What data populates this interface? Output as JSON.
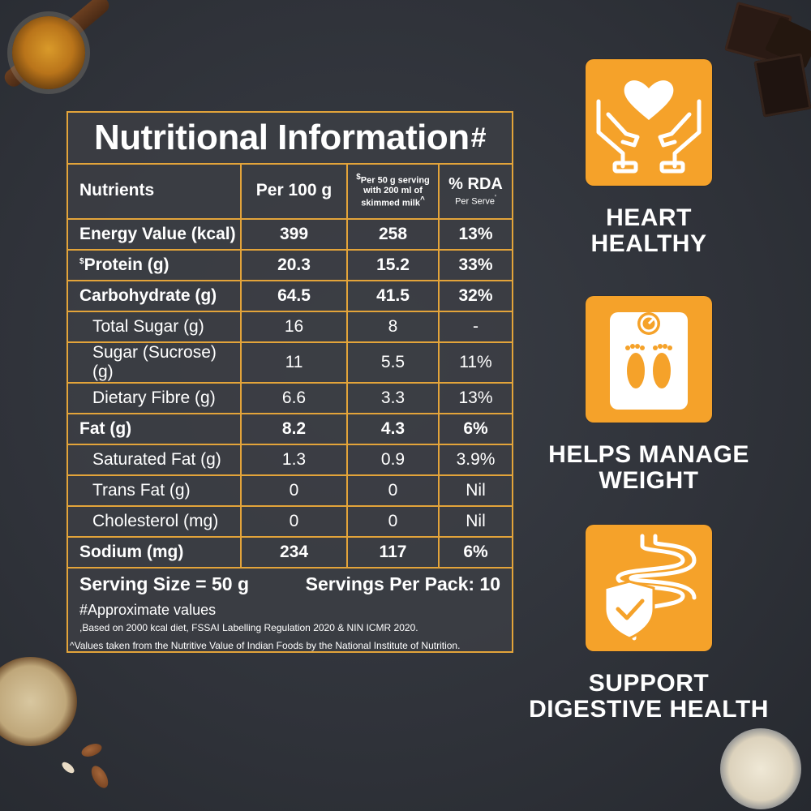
{
  "panel": {
    "title": "Nutritional Information",
    "title_mark": "#",
    "headers": {
      "nutrients": "Nutrients",
      "per100": "Per 100 g",
      "per50_mark": "$",
      "per50": "Per 50 g serving with 200 ml of skimmed milk",
      "per50_suffix": "^",
      "rda": "% RDA",
      "rda_sub": "Per Serve",
      "rda_sub_mark": "'"
    },
    "rows": [
      {
        "name": "Energy Value (kcal)",
        "per100": "399",
        "per50": "258",
        "rda": "13%",
        "style": "bold"
      },
      {
        "name": "Protein (g)",
        "mark": "$",
        "per100": "20.3",
        "per50": "15.2",
        "rda": "33%",
        "style": "bold"
      },
      {
        "name": "Carbohydrate (g)",
        "per100": "64.5",
        "per50": "41.5",
        "rda": "32%",
        "style": "bold"
      },
      {
        "name": "Total Sugar (g)",
        "per100": "16",
        "per50": "8",
        "rda": "-",
        "style": "sub"
      },
      {
        "name": "Sugar (Sucrose) (g)",
        "per100": "11",
        "per50": "5.5",
        "rda": "11%",
        "style": "sub"
      },
      {
        "name": "Dietary Fibre (g)",
        "per100": "6.6",
        "per50": "3.3",
        "rda": "13%",
        "style": "sub"
      },
      {
        "name": "Fat (g)",
        "per100": "8.2",
        "per50": "4.3",
        "rda": "6%",
        "style": "bold"
      },
      {
        "name": "Saturated Fat (g)",
        "per100": "1.3",
        "per50": "0.9",
        "rda": "3.9%",
        "style": "sub"
      },
      {
        "name": "Trans Fat (g)",
        "per100": "0",
        "per50": "0",
        "rda": "Nil",
        "style": "sub"
      },
      {
        "name": "Cholesterol (mg)",
        "per100": "0",
        "per50": "0",
        "rda": "Nil",
        "style": "sub"
      },
      {
        "name": "Sodium (mg)",
        "per100": "234",
        "per50": "117",
        "rda": "6%",
        "style": "bold"
      }
    ],
    "serving_size": "Serving Size = 50 g",
    "servings_per_pack": "Servings Per Pack: 10",
    "note_approx": "#Approximate values",
    "note_rda": ",Based on 2000 kcal diet, FSSAI Labelling Regulation 2020 & NIN ICMR 2020.",
    "note_nin": "^Values taken from the Nutritive Value of Indian Foods by the National Institute of Nutrition."
  },
  "benefits": [
    {
      "icon": "heart-hands-icon",
      "label_line1": "HEART",
      "label_line2": "HEALTHY"
    },
    {
      "icon": "weighing-scale-icon",
      "label_line1": "HELPS MANAGE",
      "label_line2": "WEIGHT"
    },
    {
      "icon": "digestive-shield-icon",
      "label_line1": "SUPPORT",
      "label_line2": "DIGESTIVE HEALTH"
    }
  ],
  "colors": {
    "accent": "#f5a22a",
    "border": "#e3a43a",
    "background": "#33363d"
  }
}
